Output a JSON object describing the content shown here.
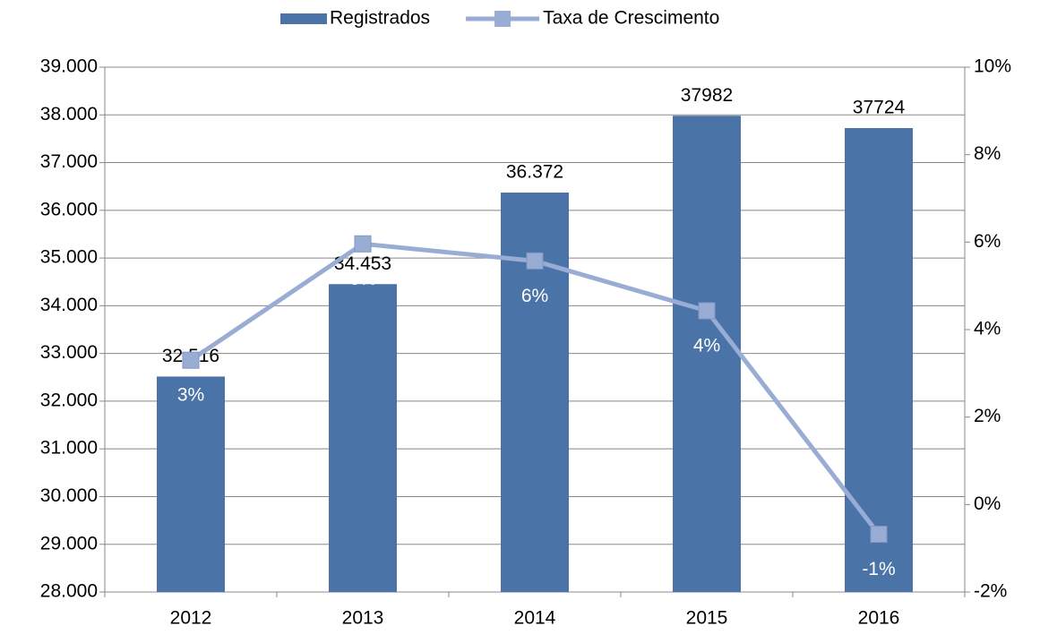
{
  "chart_data": {
    "type": "bar_line",
    "categories": [
      "2012",
      "2013",
      "2014",
      "2015",
      "2016"
    ],
    "series": [
      {
        "name": "Registrados",
        "type": "bar",
        "color": "#4a73a8",
        "values": [
          32516,
          34453,
          36372,
          37982,
          37724
        ],
        "value_labels": [
          "32.516",
          "34.453",
          "36.372",
          "37982",
          "37724"
        ]
      },
      {
        "name": "Taxa de Crescimento",
        "type": "line",
        "axis": "y2",
        "color": "#98acd4",
        "values": [
          3.3,
          5.96,
          5.57,
          4.43,
          -0.68
        ],
        "value_labels": [
          "3%",
          "6%",
          "6%",
          "4%",
          "-1%"
        ]
      }
    ],
    "ylim": [
      28000,
      39000
    ],
    "yticks": [
      {
        "value": 28000,
        "label": "28.000"
      },
      {
        "value": 29000,
        "label": "29.000"
      },
      {
        "value": 30000,
        "label": "30.000"
      },
      {
        "value": 31000,
        "label": "31.000"
      },
      {
        "value": 32000,
        "label": "32.000"
      },
      {
        "value": 33000,
        "label": "33.000"
      },
      {
        "value": 34000,
        "label": "34.000"
      },
      {
        "value": 35000,
        "label": "35.000"
      },
      {
        "value": 36000,
        "label": "36.000"
      },
      {
        "value": 37000,
        "label": "37.000"
      },
      {
        "value": 38000,
        "label": "38.000"
      },
      {
        "value": 39000,
        "label": "39.000"
      }
    ],
    "y2lim": [
      -2,
      10
    ],
    "y2ticks": [
      {
        "value": -2,
        "label": "-2%"
      },
      {
        "value": 0,
        "label": "0%"
      },
      {
        "value": 2,
        "label": "2%"
      },
      {
        "value": 4,
        "label": "4%"
      },
      {
        "value": 6,
        "label": "6%"
      },
      {
        "value": 8,
        "label": "8%"
      },
      {
        "value": 10,
        "label": "10%"
      }
    ],
    "grid": true,
    "legend": "top"
  }
}
